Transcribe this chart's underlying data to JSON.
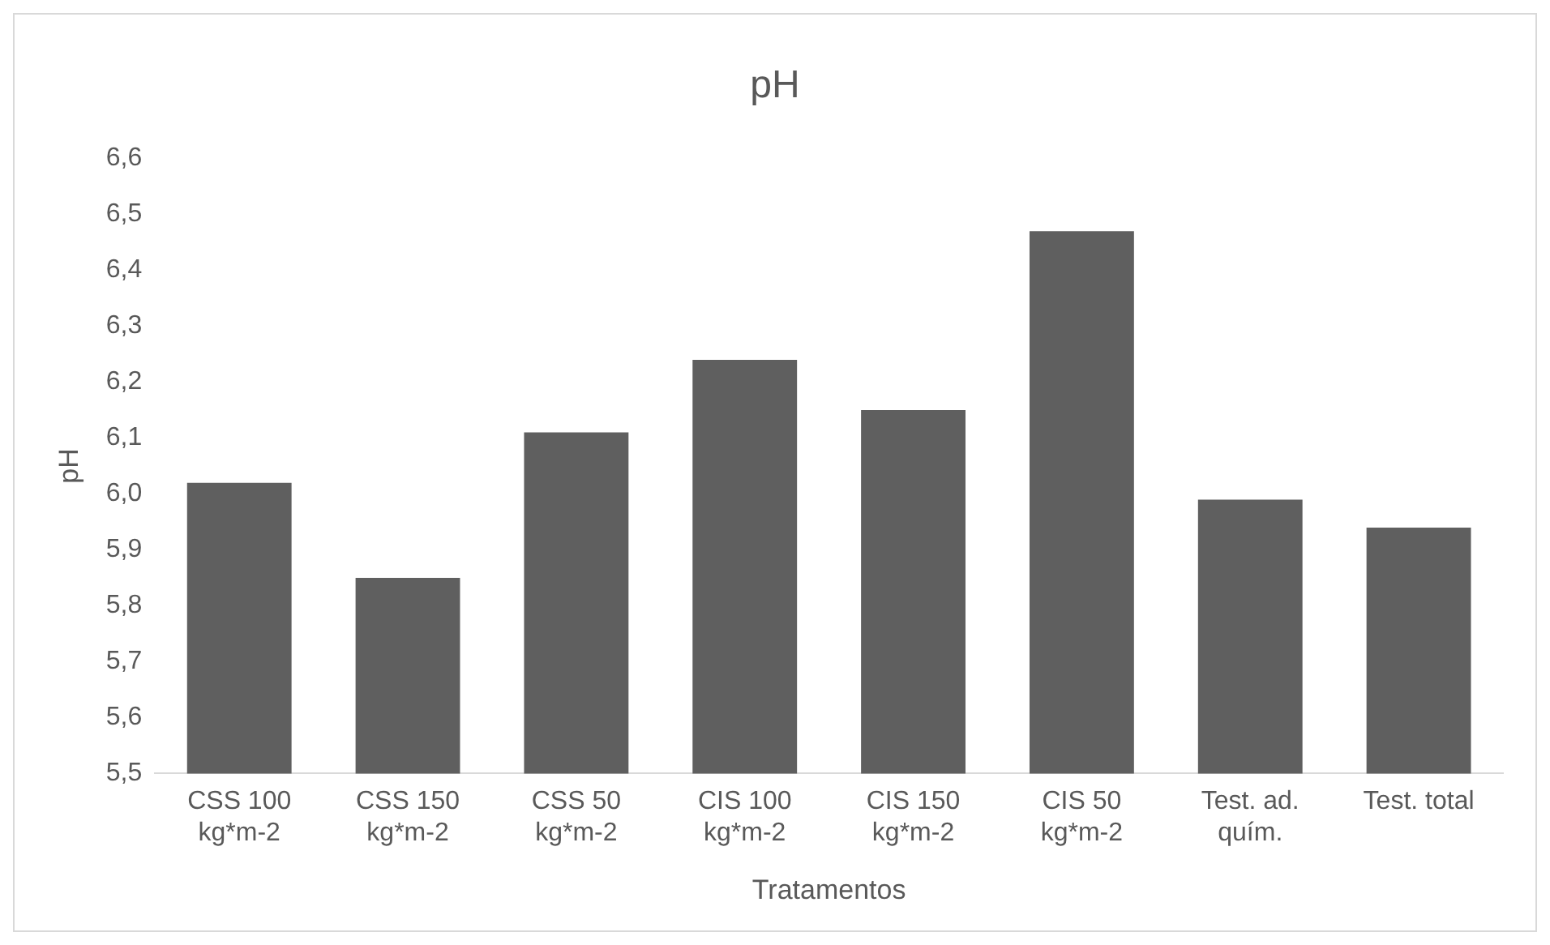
{
  "chart_data": {
    "type": "bar",
    "title": "pH",
    "xlabel": "Tratamentos",
    "ylabel": "pH",
    "categories": [
      "CSS 100 kg*m-2",
      "CSS 150 kg*m-2",
      "CSS 50 kg*m-2",
      "CIS 100 kg*m-2",
      "CIS 150 kg*m-2",
      "CIS 50 kg*m-2",
      "Test. ad. quím.",
      "Test. total"
    ],
    "values": [
      6.02,
      5.85,
      6.11,
      6.24,
      6.15,
      6.47,
      5.99,
      5.94
    ],
    "color": "#5f5f5f",
    "ylim": [
      5.5,
      6.6
    ],
    "yticks": [
      {
        "value": 5.5,
        "label": "5,5"
      },
      {
        "value": 5.6,
        "label": "5,6"
      },
      {
        "value": 5.7,
        "label": "5,7"
      },
      {
        "value": 5.8,
        "label": "5,8"
      },
      {
        "value": 5.9,
        "label": "5,9"
      },
      {
        "value": 6.0,
        "label": "6,0"
      },
      {
        "value": 6.1,
        "label": "6,1"
      },
      {
        "value": 6.2,
        "label": "6,2"
      },
      {
        "value": 6.3,
        "label": "6,3"
      },
      {
        "value": 6.4,
        "label": "6,4"
      },
      {
        "value": 6.5,
        "label": "6,5"
      },
      {
        "value": 6.6,
        "label": "6,6"
      }
    ],
    "grid": false,
    "legend": false
  }
}
